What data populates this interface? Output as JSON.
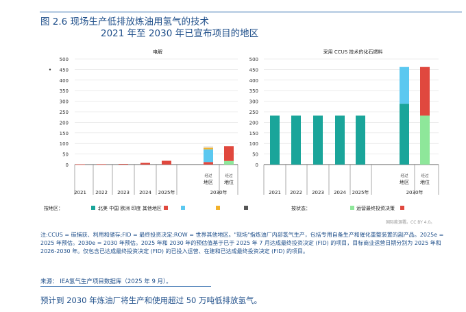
{
  "header": {
    "title_line1": "图 2.6 现场生产低排放炼油用氢气的技术",
    "title_line2": "2021 年至 2030 年已宣布项目的地区"
  },
  "colors": {
    "north_america": "#1aa59a",
    "china": "#5bc8f0",
    "europe": "#f2b12b",
    "india": "#555555",
    "other": "#e0483e",
    "operational_fid": "#8ee79a",
    "grid": "#dddddd",
    "axis": "#333333"
  },
  "chart_data": [
    {
      "type": "bar",
      "title": "电解",
      "ylim": [
        0,
        500
      ],
      "yticks": [
        "500",
        "450",
        "400",
        "350",
        "300",
        "250",
        "200",
        "150",
        "100",
        "50",
        "0"
      ],
      "categories": [
        "2021",
        "2022",
        "2023",
        "2024",
        "2025年",
        "地区",
        "地位"
      ],
      "group_labels": [
        "2030年"
      ],
      "sub_labels": [
        "经过",
        "经过"
      ],
      "stacks": [
        [
          {
            "color": "#e0483e",
            "value": 1
          }
        ],
        [
          {
            "color": "#e0483e",
            "value": 2
          }
        ],
        [
          {
            "color": "#e0483e",
            "value": 3
          }
        ],
        [
          {
            "color": "#e0483e",
            "value": 8
          }
        ],
        [
          {
            "color": "#e0483e",
            "value": 18
          }
        ],
        [
          {
            "color": "#e0483e",
            "value": 12
          },
          {
            "color": "#5bc8f0",
            "value": 60
          },
          {
            "color": "#f2b12b",
            "value": 8
          },
          {
            "color": "#e8e8e8",
            "value": 7
          }
        ],
        [
          {
            "color": "#8ee79a",
            "value": 17
          },
          {
            "color": "#e0483e",
            "value": 70
          }
        ]
      ],
      "legend_label": "按地区：",
      "legend_items": [
        "北美 中国 欧洲 印度 其他地区"
      ],
      "legend_colors": [
        "#1aa59a",
        "#e0483e",
        "#5bc8f0",
        "#f2b12b",
        "#555555"
      ]
    },
    {
      "type": "bar",
      "title": "采用 CCUS 技术的化石燃料",
      "ylim": [
        0,
        500
      ],
      "yticks": [
        "500",
        "450",
        "400",
        "350",
        "300",
        "250",
        "200",
        "150",
        "100",
        "50",
        "0"
      ],
      "categories": [
        "2021",
        "2022",
        "2023",
        "2024",
        "2025年",
        "地区",
        "地位"
      ],
      "group_labels": [
        "2030年"
      ],
      "sub_labels": [
        "经过",
        "经过"
      ],
      "stacks": [
        [
          {
            "color": "#1aa59a",
            "value": 232
          }
        ],
        [
          {
            "color": "#1aa59a",
            "value": 232
          }
        ],
        [
          {
            "color": "#1aa59a",
            "value": 232
          }
        ],
        [
          {
            "color": "#1aa59a",
            "value": 232
          }
        ],
        [
          {
            "color": "#1aa59a",
            "value": 232
          }
        ],
        [
          {
            "color": "#1aa59a",
            "value": 288
          },
          {
            "color": "#5bc8f0",
            "value": 174
          }
        ],
        [
          {
            "color": "#8ee79a",
            "value": 232
          },
          {
            "color": "#e0483e",
            "value": 230
          }
        ]
      ],
      "legend_label": "按状态：",
      "legend_items": [
        "运营最终投资决策"
      ],
      "legend_colors": [
        "#8ee79a",
        "#e0483e"
      ]
    }
  ],
  "credit": "国际能源署。CC BY 4.0。",
  "note": "注:CCUS = 碳捕获、利用和储存;FID = 最终投资决定;ROW = 世界其他地区。\"现场\"指炼油厂内部氢气生产，包括专用自备生产和催化重整装置的副产品。2025e = 2025 年预估。2030e = 2030 年预估。2025 年和 2030 年的预估值基于已于 2025 年 7 月达成最终投资决定 (FID) 的项目，目标商业运营日期分别为 2025 年和 2026-2030 年。仅包含已达成最终投资决定 (FID) 的已投入运营、在建和已达成最终投资决定 (FID) 的项目。",
  "source": {
    "label": "来源：",
    "link": "IEA氢气生产项目数据库（2025 年 9 月）。"
  },
  "summary": "预计到 2030 年炼油厂将生产和使用超过 50 万吨低排放氢气。"
}
